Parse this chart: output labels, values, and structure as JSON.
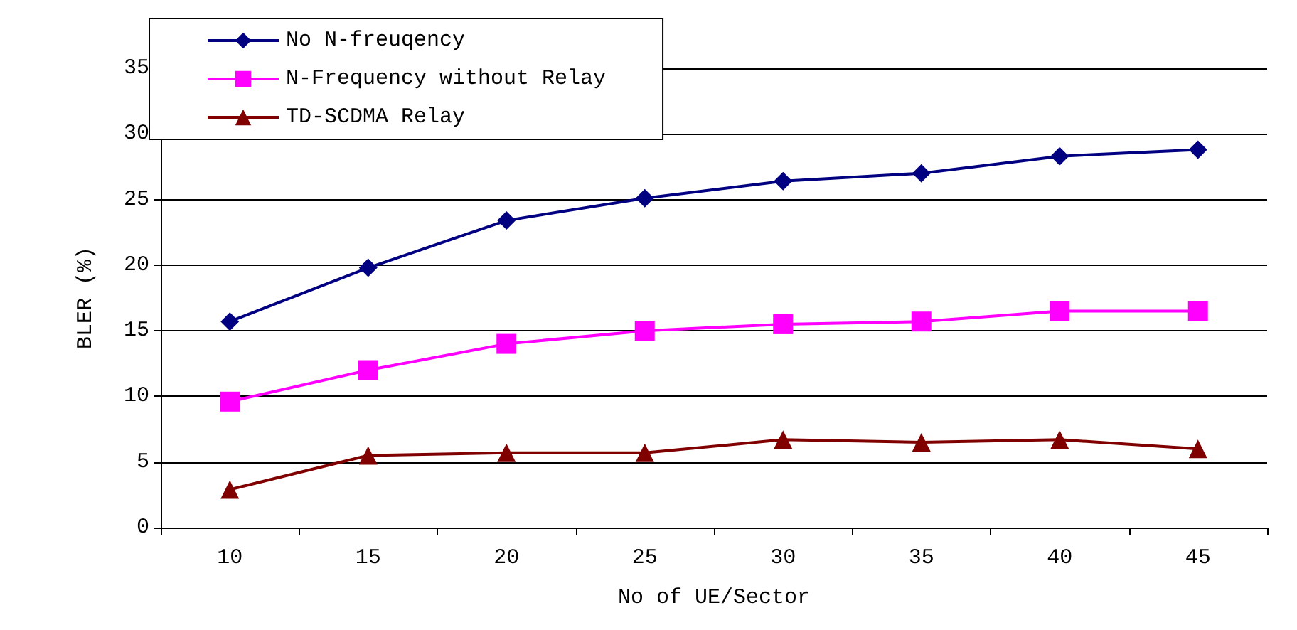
{
  "chart_data": {
    "type": "line",
    "xlabel": "No of UE/Sector",
    "ylabel": "BLER (%)",
    "categories": [
      "10",
      "15",
      "20",
      "25",
      "30",
      "35",
      "40",
      "45"
    ],
    "series": [
      {
        "name": "No N-freuqency",
        "color": "#000080",
        "marker": "diamond",
        "values": [
          15.7,
          19.8,
          23.4,
          25.1,
          26.4,
          27.0,
          28.3,
          28.8
        ]
      },
      {
        "name": "N-Frequency without Relay",
        "color": "#ff00ff",
        "marker": "square",
        "values": [
          9.6,
          12.0,
          14.0,
          15.0,
          15.5,
          15.7,
          16.5,
          16.5
        ]
      },
      {
        "name": "TD-SCDMA Relay",
        "color": "#800000",
        "marker": "triangle",
        "values": [
          2.9,
          5.5,
          5.7,
          5.7,
          6.7,
          6.5,
          6.7,
          6.0
        ]
      }
    ],
    "ylim": [
      0,
      35
    ],
    "yticks": [
      0,
      5,
      10,
      15,
      20,
      25,
      30,
      35
    ],
    "grid": "y",
    "legend": "top left",
    "line_style": "solid"
  }
}
